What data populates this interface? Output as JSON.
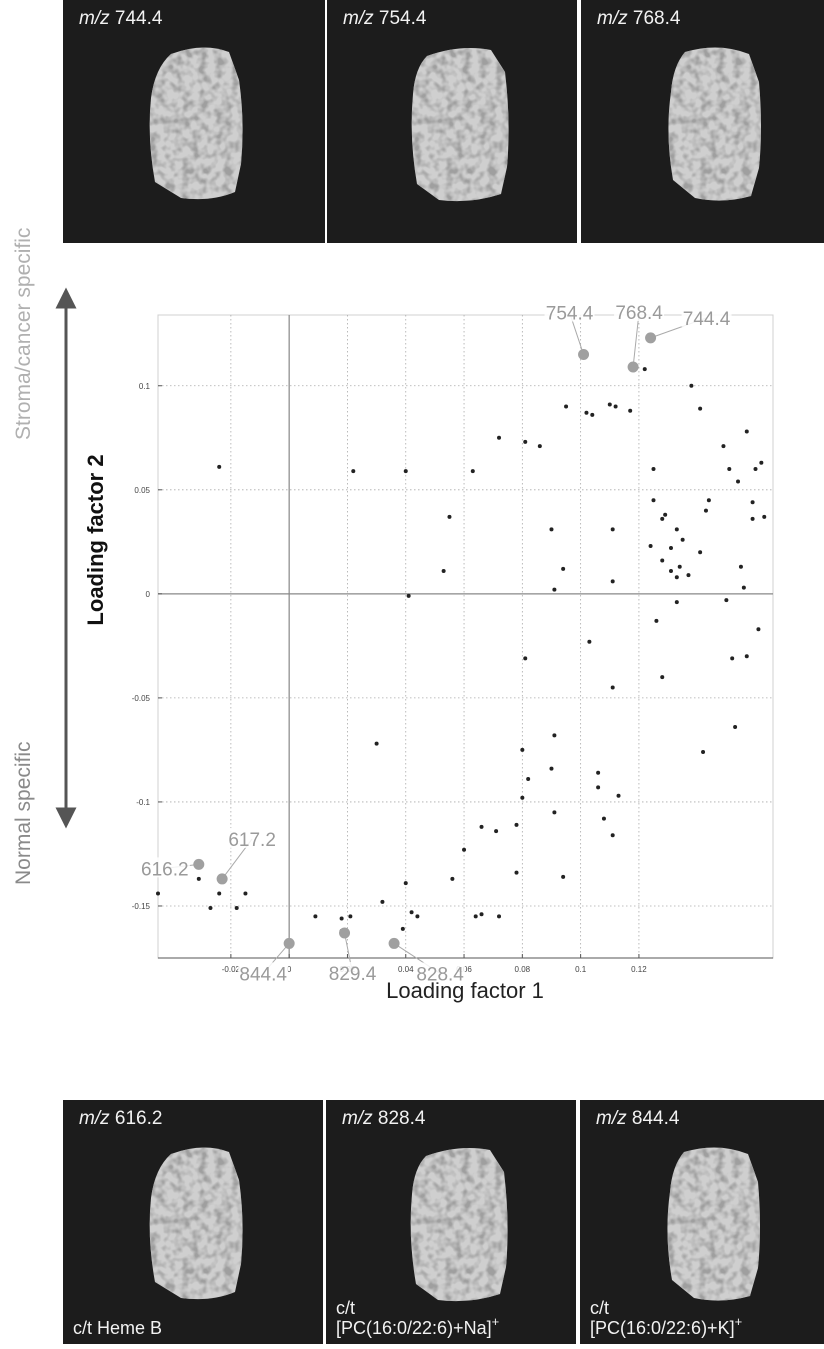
{
  "top_panels": [
    {
      "prefix": "m/z",
      "mass": "744.4"
    },
    {
      "prefix": "m/z",
      "mass": "754.4"
    },
    {
      "prefix": "m/z",
      "mass": "768.4"
    }
  ],
  "chart_data": {
    "type": "scatter",
    "y_annotation_top": "Stroma/cancer specific",
    "y_annotation_bottom": "Normal specific",
    "ylabel": "Loading factor 2",
    "xlabel": "Loading factor 1",
    "color": "#222222",
    "x": [
      -0.045,
      -0.031,
      -0.027,
      -0.024,
      -0.018,
      -0.015,
      -0.024,
      0.009,
      0.018,
      0.018,
      0.021,
      0.032,
      0.04,
      0.042,
      0.044,
      0.039,
      0.03,
      0.022,
      0.04,
      0.041,
      0.053,
      0.055,
      0.063,
      0.072,
      0.081,
      0.081,
      0.086,
      0.056,
      0.06,
      0.064,
      0.066,
      0.066,
      0.071,
      0.072,
      0.078,
      0.078,
      0.08,
      0.082,
      0.08,
      0.09,
      0.091,
      0.091,
      0.094,
      0.09,
      0.091,
      0.094,
      0.095,
      0.102,
      0.104,
      0.103,
      0.106,
      0.106,
      0.108,
      0.111,
      0.111,
      0.111,
      0.111,
      0.113,
      0.11,
      0.112,
      0.117,
      0.122,
      0.125,
      0.125,
      0.124,
      0.128,
      0.126,
      0.128,
      0.128,
      0.129,
      0.131,
      0.131,
      0.133,
      0.133,
      0.133,
      0.134,
      0.135,
      0.137,
      0.138,
      0.141,
      0.141,
      0.142,
      0.143,
      0.144,
      0.149,
      0.151,
      0.15,
      0.152,
      0.153,
      0.154,
      0.155,
      0.156,
      0.157,
      0.157,
      0.159,
      0.159,
      0.16,
      0.161,
      0.162,
      0.163
    ],
    "y": [
      -0.144,
      -0.137,
      -0.151,
      -0.144,
      -0.151,
      -0.144,
      0.061,
      -0.155,
      -0.156,
      -0.162,
      -0.155,
      -0.148,
      -0.139,
      -0.153,
      -0.155,
      -0.161,
      -0.072,
      0.059,
      0.059,
      -0.001,
      0.011,
      0.037,
      0.059,
      0.075,
      -0.031,
      0.073,
      0.071,
      -0.137,
      -0.123,
      -0.155,
      -0.154,
      -0.112,
      -0.114,
      -0.155,
      -0.111,
      -0.134,
      -0.098,
      -0.089,
      -0.075,
      -0.084,
      -0.105,
      -0.068,
      -0.136,
      0.031,
      0.002,
      0.012,
      0.09,
      0.087,
      0.086,
      -0.023,
      -0.086,
      -0.093,
      -0.108,
      -0.045,
      0.006,
      0.031,
      -0.116,
      -0.097,
      0.091,
      0.09,
      0.088,
      0.108,
      0.06,
      0.045,
      0.023,
      0.016,
      -0.013,
      -0.04,
      0.036,
      0.038,
      0.011,
      0.022,
      0.008,
      0.031,
      -0.004,
      0.013,
      0.026,
      0.009,
      0.1,
      0.02,
      0.089,
      -0.076,
      0.04,
      0.045,
      0.071,
      0.06,
      -0.003,
      -0.031,
      -0.064,
      0.054,
      0.013,
      0.003,
      0.078,
      -0.03,
      0.044,
      0.036,
      0.06,
      -0.017,
      0.063,
      0.037
    ],
    "highlight": {
      "color": "#a0a0a0",
      "labels": [
        "754.4",
        "768.4",
        "744.4",
        "617.2",
        "616.2",
        "844.4",
        "829.4",
        "828.4"
      ],
      "x": [
        0.101,
        0.118,
        0.124,
        -0.023,
        -0.031,
        0.0,
        0.019,
        0.036
      ],
      "y": [
        0.115,
        0.109,
        0.123,
        -0.137,
        -0.13,
        -0.168,
        -0.163,
        -0.168
      ]
    },
    "xlim": [
      -0.045,
      0.166
    ],
    "ylim": [
      -0.175,
      0.134
    ],
    "xticks": [
      -0.02,
      0,
      0.02,
      0.04,
      0.06,
      0.08,
      0.1,
      0.12
    ],
    "yticks": [
      -0.15,
      -0.1,
      -0.05,
      0,
      0.05,
      0.1
    ],
    "grid": true
  },
  "bottom_panels": [
    {
      "prefix": "m/z",
      "mass": "616.2",
      "caption": [
        "c/t Heme B"
      ]
    },
    {
      "prefix": "m/z",
      "mass": "828.4",
      "caption": [
        "c/t",
        "[PC(16:0/22:6)+Na]"
      ],
      "superscript": "+"
    },
    {
      "prefix": "m/z",
      "mass": "844.4",
      "caption": [
        "c/t",
        "[PC(16:0/22:6)+K]"
      ],
      "superscript": "+"
    }
  ]
}
